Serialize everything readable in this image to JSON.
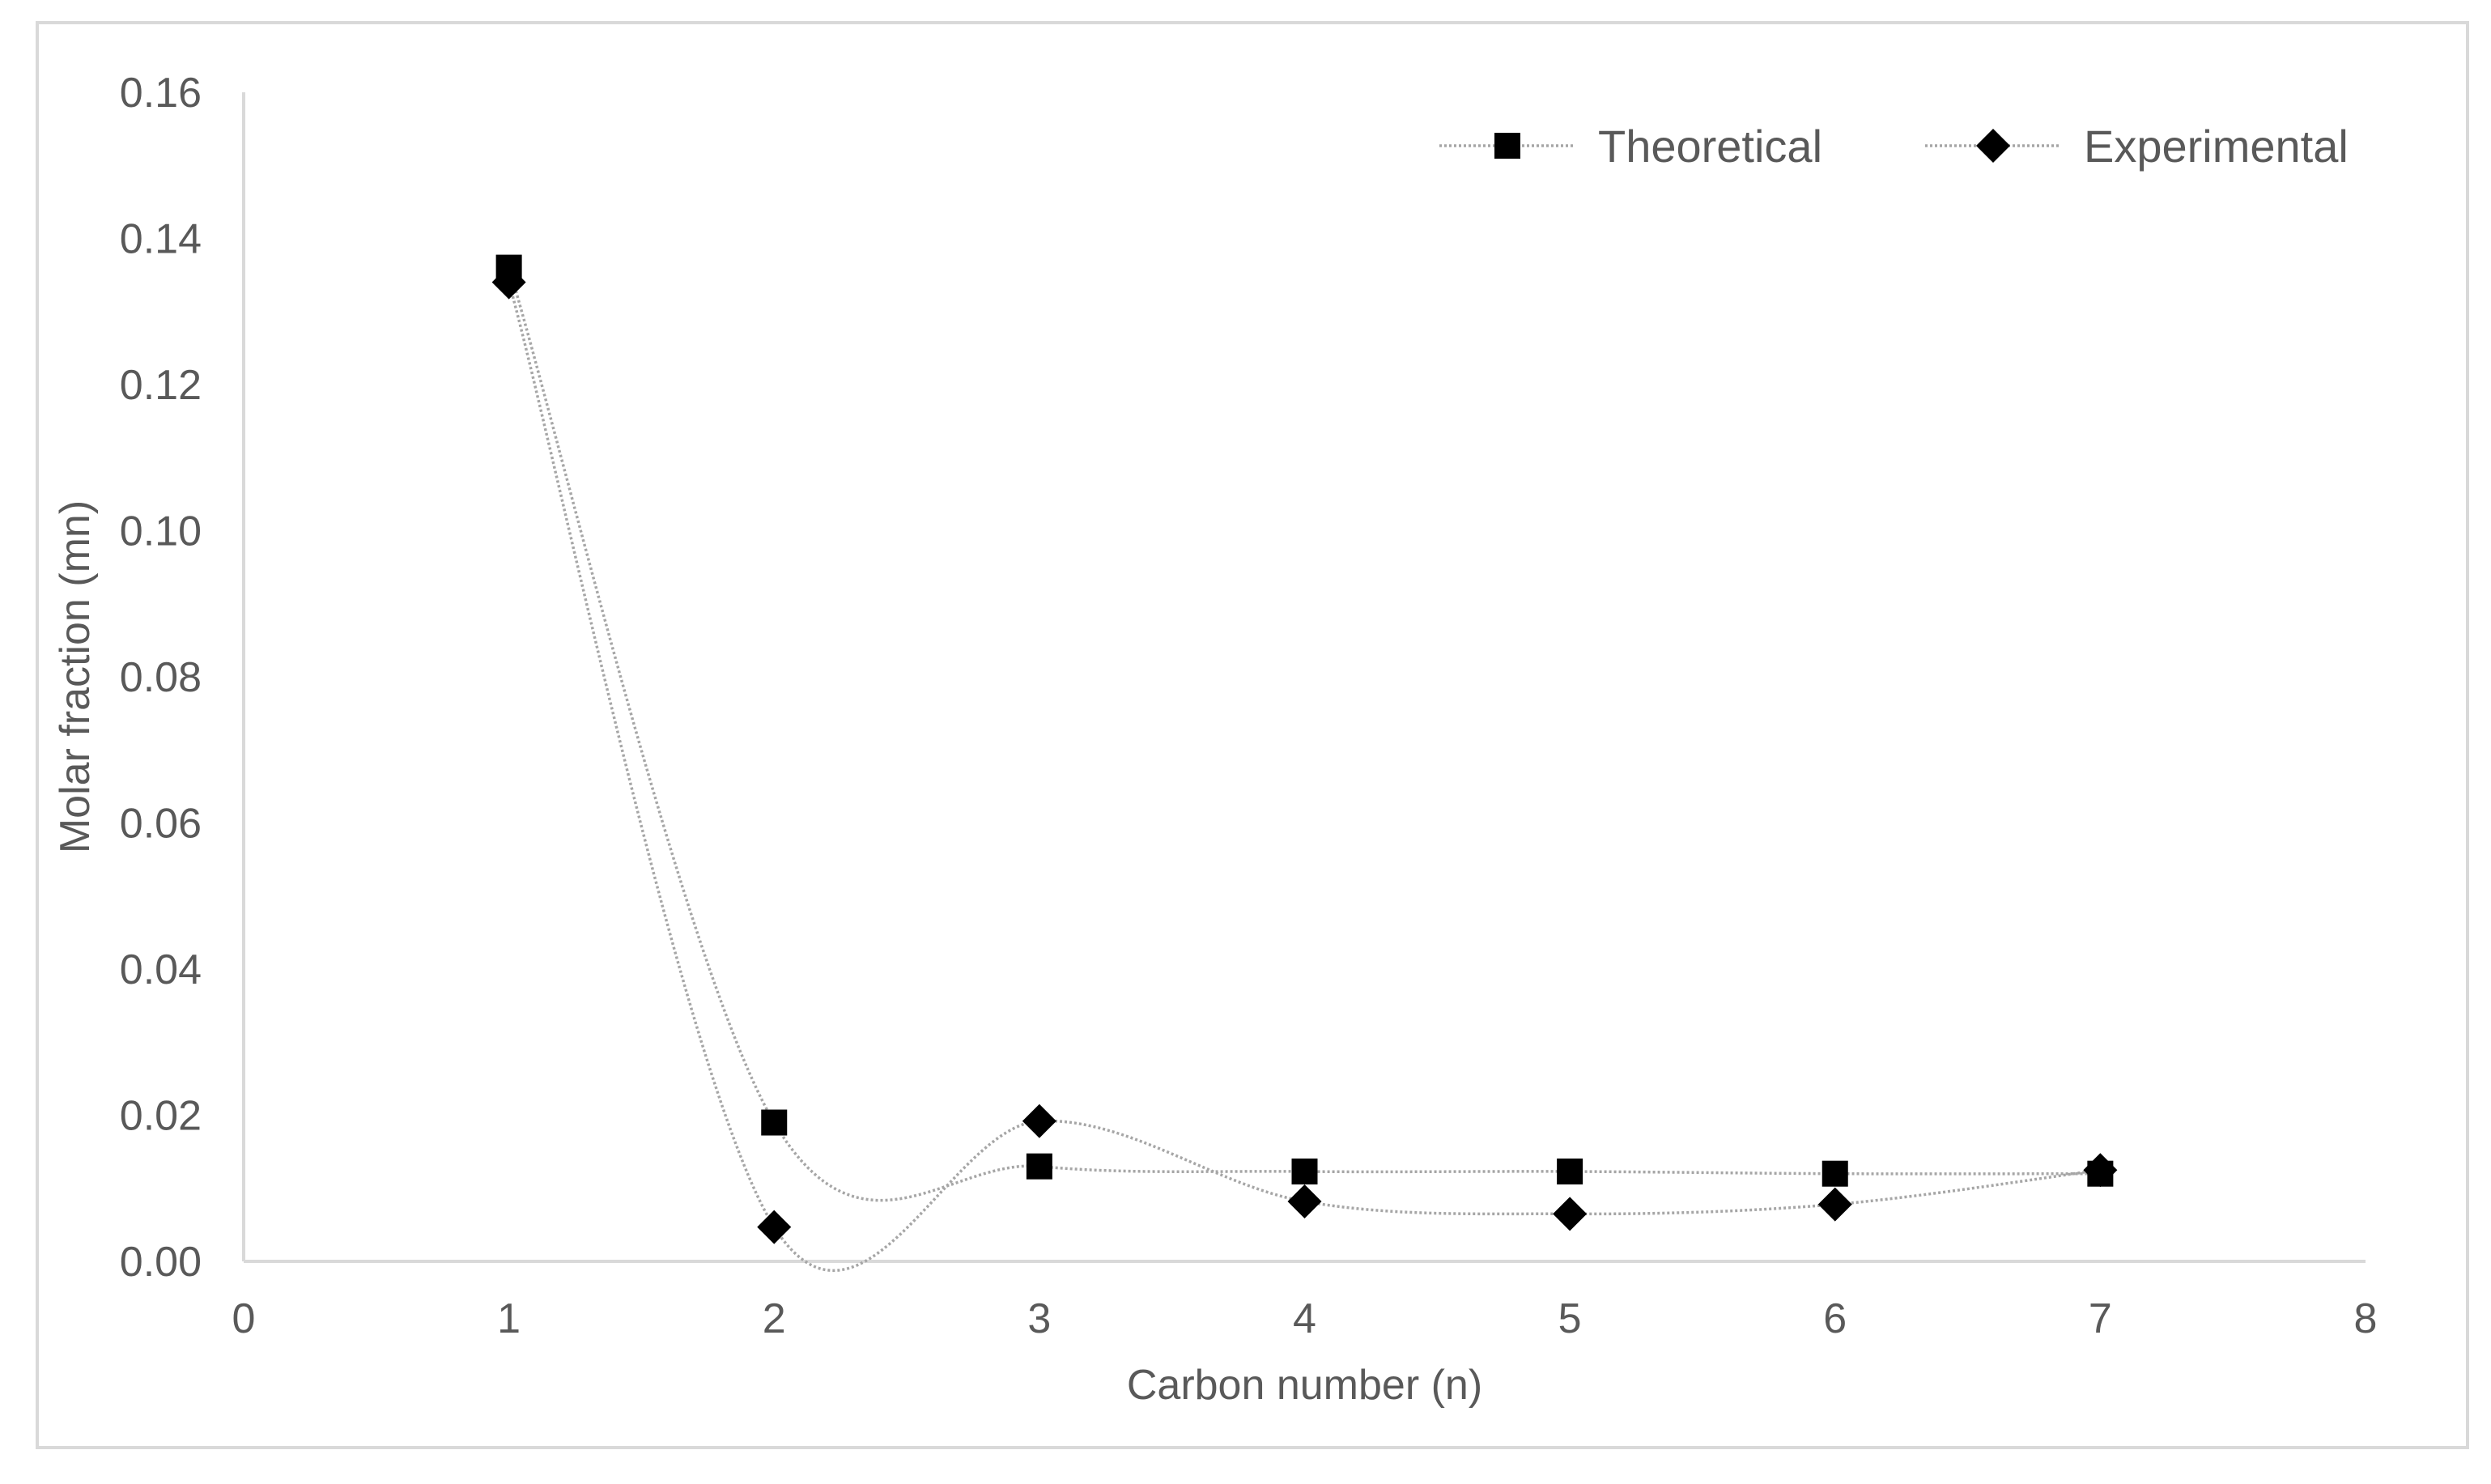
{
  "chart_data": {
    "type": "scatter",
    "title": "",
    "xlabel": "Carbon number (n)",
    "ylabel": "Molar fraction (mn)",
    "xlim": [
      0,
      8
    ],
    "ylim": [
      0,
      0.16
    ],
    "x_ticks": [
      "0",
      "1",
      "2",
      "3",
      "4",
      "5",
      "6",
      "7",
      "8"
    ],
    "y_ticks": [
      "0.00",
      "0.02",
      "0.04",
      "0.06",
      "0.08",
      "0.10",
      "0.12",
      "0.14",
      "0.16"
    ],
    "grid": false,
    "legend_position": "top-right",
    "line_style": "smoothed dotted gray",
    "series": [
      {
        "name": "Theoretical",
        "marker": "square",
        "color": "#000000",
        "line_color": "#a6a6a6",
        "x": [
          1,
          2,
          3,
          4,
          5,
          6,
          7
        ],
        "y": [
          0.136,
          0.019,
          0.013,
          0.0123,
          0.0123,
          0.012,
          0.012
        ]
      },
      {
        "name": "Experimental",
        "marker": "diamond",
        "color": "#000000",
        "line_color": "#a6a6a6",
        "x": [
          1,
          2,
          3,
          4,
          5,
          6,
          7
        ],
        "y": [
          0.134,
          0.0047,
          0.0192,
          0.0082,
          0.0065,
          0.0078,
          0.0125
        ]
      }
    ]
  }
}
